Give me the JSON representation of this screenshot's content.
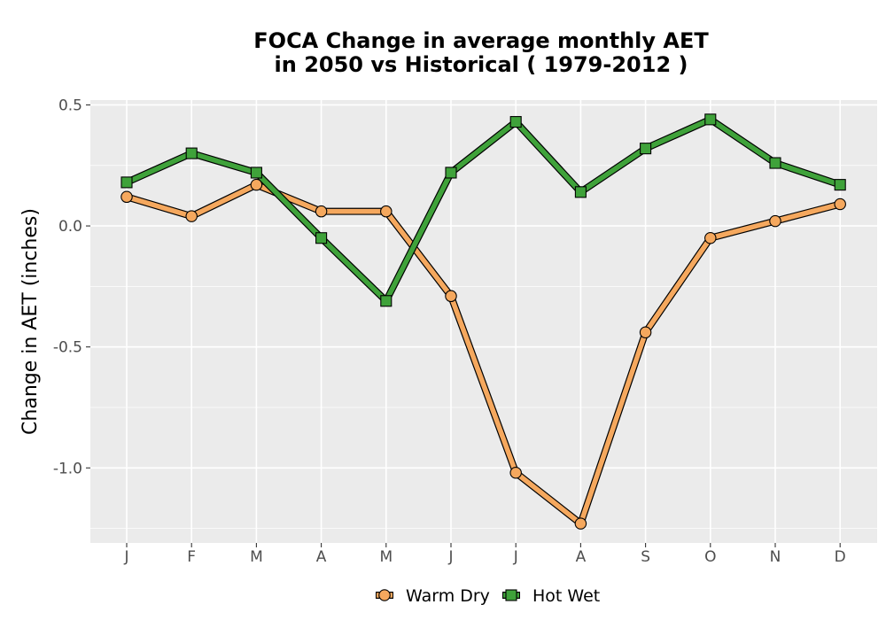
{
  "chart_data": {
    "type": "line",
    "title_line1": "FOCA  Change in average monthly AET",
    "title_line2": "in 2050 vs Historical ( 1979-2012 )",
    "xlabel": "",
    "ylabel": "Change in AET (inches)",
    "categories": [
      "J",
      "F",
      "M",
      "A",
      "M",
      "J",
      "J",
      "A",
      "S",
      "O",
      "N",
      "D"
    ],
    "ylim": [
      -1.31,
      0.52
    ],
    "yticks": [
      0.5,
      0.0,
      -0.5,
      -1.0
    ],
    "ytick_labels": [
      "0.5",
      "0.0",
      "-0.5",
      "-1.0"
    ],
    "grid": true,
    "legend_position": "bottom",
    "series": [
      {
        "name": "Warm Dry",
        "marker": "circle",
        "color": "#f5a85e",
        "values": [
          0.12,
          0.04,
          0.17,
          0.06,
          0.06,
          -0.29,
          -1.02,
          -1.23,
          -0.44,
          -0.05,
          0.02,
          0.09
        ]
      },
      {
        "name": "Hot Wet",
        "marker": "square",
        "color": "#3fa23a",
        "values": [
          0.18,
          0.3,
          0.22,
          -0.05,
          -0.31,
          0.22,
          0.43,
          0.14,
          0.32,
          0.44,
          0.26,
          0.17
        ]
      }
    ]
  }
}
